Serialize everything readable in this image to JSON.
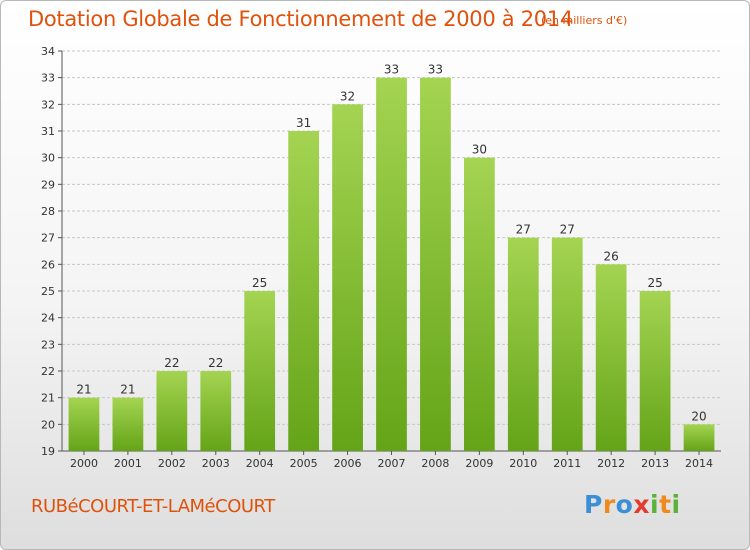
{
  "chart_data": {
    "type": "bar",
    "title": "Dotation Globale de Fonctionnement de 2000 à 2014",
    "subtitle": "(en milliers d'€)",
    "categories": [
      "2000",
      "2001",
      "2002",
      "2003",
      "2004",
      "2005",
      "2006",
      "2007",
      "2008",
      "2009",
      "2010",
      "2011",
      "2012",
      "2013",
      "2014"
    ],
    "values": [
      21,
      21,
      22,
      22,
      25,
      31,
      32,
      33,
      33,
      30,
      27,
      27,
      26,
      25,
      20
    ],
    "ylim": [
      19,
      34
    ],
    "yticks": [
      19,
      20,
      21,
      22,
      23,
      24,
      25,
      26,
      27,
      28,
      29,
      30,
      31,
      32,
      33,
      34
    ],
    "xlabel": "",
    "ylabel": "",
    "grid": true,
    "colors": {
      "bar_light": "#9ccf48",
      "bar_dark": "#64a418",
      "grid": "#c8c8c8",
      "text": "#e0520c"
    }
  },
  "footer": {
    "commune": "RUBéCOURT-ET-LAMéCOURT",
    "logo_parts": [
      "P",
      "r",
      "o",
      "x",
      "i",
      "t",
      "i"
    ]
  }
}
